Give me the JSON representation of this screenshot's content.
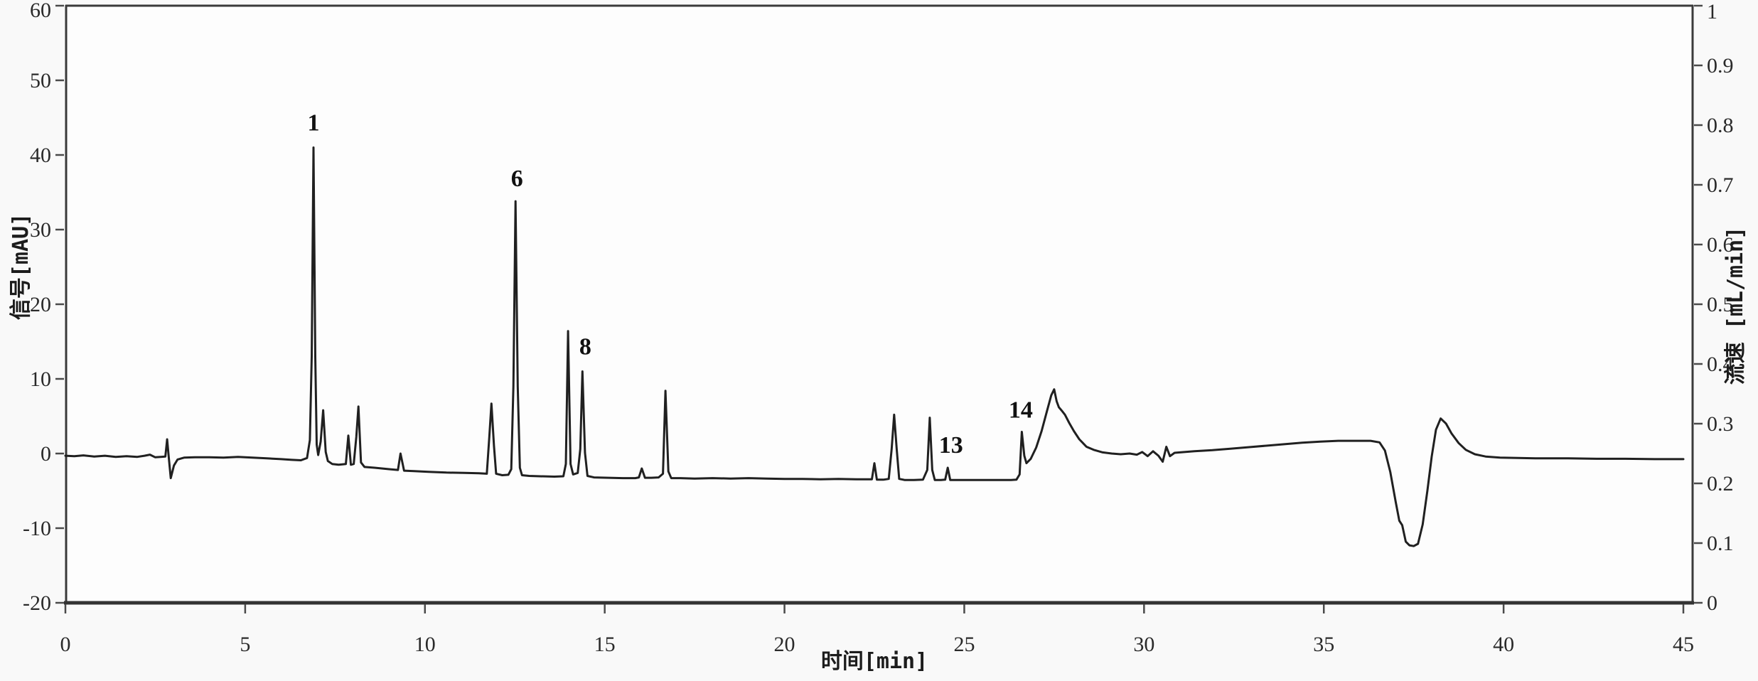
{
  "figure": {
    "kind": "HPLC chromatogram",
    "background": "#f9f9f9",
    "plot_background": "#fdfdfd"
  },
  "chart_data": {
    "type": "line",
    "title": "",
    "xlabel": "时间[min]",
    "ylabel_left": "信号[mAU]",
    "ylabel_right": "流速 [mL/min]",
    "legend": "none",
    "grid": "off",
    "x_axis": {
      "min": 0,
      "max": 45.3,
      "ticks": [
        0,
        5,
        10,
        15,
        20,
        25,
        30,
        35,
        40,
        45
      ]
    },
    "y_axis_left": {
      "min": -20,
      "max": 60,
      "ticks": [
        -20,
        -10,
        0,
        10,
        20,
        30,
        40,
        50,
        60
      ]
    },
    "y_axis_right": {
      "min": 0,
      "max": 1,
      "ticks": [
        0,
        0.1,
        0.2,
        0.3,
        0.4,
        0.5,
        0.6,
        0.7,
        0.8,
        0.9,
        1
      ]
    },
    "peak_labels": [
      {
        "text": "1",
        "t": 6.9,
        "v": 43.3
      },
      {
        "text": "6",
        "t": 12.56,
        "v": 35.8
      },
      {
        "text": "8",
        "t": 14.46,
        "v": 13.3
      },
      {
        "text": "13",
        "t": 24.63,
        "v": 0.1
      },
      {
        "text": "14",
        "t": 26.57,
        "v": 4.8
      }
    ],
    "series": [
      {
        "name": "signal",
        "color": "#202020",
        "points": [
          [
            0,
            -0.3
          ],
          [
            0.25,
            -0.35
          ],
          [
            0.5,
            -0.25
          ],
          [
            0.8,
            -0.4
          ],
          [
            1.1,
            -0.3
          ],
          [
            1.4,
            -0.45
          ],
          [
            1.7,
            -0.35
          ],
          [
            2.0,
            -0.45
          ],
          [
            2.2,
            -0.3
          ],
          [
            2.35,
            -0.15
          ],
          [
            2.5,
            -0.5
          ],
          [
            2.65,
            -0.45
          ],
          [
            2.78,
            -0.4
          ],
          [
            2.83,
            1.9
          ],
          [
            2.87,
            -0.3
          ],
          [
            2.93,
            -3.3
          ],
          [
            3.02,
            -1.6
          ],
          [
            3.12,
            -0.8
          ],
          [
            3.3,
            -0.55
          ],
          [
            3.6,
            -0.5
          ],
          [
            4.0,
            -0.5
          ],
          [
            4.4,
            -0.55
          ],
          [
            4.8,
            -0.45
          ],
          [
            5.2,
            -0.55
          ],
          [
            5.6,
            -0.65
          ],
          [
            6.0,
            -0.75
          ],
          [
            6.3,
            -0.85
          ],
          [
            6.55,
            -0.9
          ],
          [
            6.72,
            -0.6
          ],
          [
            6.8,
            1.8
          ],
          [
            6.85,
            13
          ],
          [
            6.9,
            41.0
          ],
          [
            6.95,
            13
          ],
          [
            6.99,
            1.2
          ],
          [
            7.03,
            -0.2
          ],
          [
            7.1,
            1.6
          ],
          [
            7.17,
            5.8
          ],
          [
            7.24,
            0.2
          ],
          [
            7.3,
            -1.0
          ],
          [
            7.42,
            -1.4
          ],
          [
            7.6,
            -1.5
          ],
          [
            7.8,
            -1.4
          ],
          [
            7.87,
            2.4
          ],
          [
            7.94,
            -1.5
          ],
          [
            8.02,
            -1.4
          ],
          [
            8.09,
            2.2
          ],
          [
            8.15,
            6.3
          ],
          [
            8.22,
            -1.2
          ],
          [
            8.32,
            -1.8
          ],
          [
            8.6,
            -1.9
          ],
          [
            9.0,
            -2.1
          ],
          [
            9.25,
            -2.2
          ],
          [
            9.32,
            0.0
          ],
          [
            9.42,
            -2.3
          ],
          [
            9.7,
            -2.35
          ],
          [
            10.1,
            -2.45
          ],
          [
            10.6,
            -2.55
          ],
          [
            11.1,
            -2.6
          ],
          [
            11.5,
            -2.65
          ],
          [
            11.72,
            -2.7
          ],
          [
            11.79,
            2.2
          ],
          [
            11.85,
            6.7
          ],
          [
            11.92,
            1.0
          ],
          [
            11.98,
            -2.7
          ],
          [
            12.15,
            -2.9
          ],
          [
            12.32,
            -2.85
          ],
          [
            12.4,
            -2.1
          ],
          [
            12.46,
            9
          ],
          [
            12.52,
            33.8
          ],
          [
            12.58,
            9
          ],
          [
            12.64,
            -1.9
          ],
          [
            12.7,
            -2.9
          ],
          [
            12.9,
            -3.0
          ],
          [
            13.2,
            -3.05
          ],
          [
            13.6,
            -3.1
          ],
          [
            13.85,
            -3.05
          ],
          [
            13.92,
            -1.4
          ],
          [
            13.98,
            16.4
          ],
          [
            14.05,
            -1.4
          ],
          [
            14.12,
            -2.8
          ],
          [
            14.25,
            -2.6
          ],
          [
            14.32,
            0.6
          ],
          [
            14.38,
            11.0
          ],
          [
            14.45,
            0.1
          ],
          [
            14.52,
            -3.0
          ],
          [
            14.7,
            -3.2
          ],
          [
            15.1,
            -3.25
          ],
          [
            15.5,
            -3.3
          ],
          [
            15.85,
            -3.3
          ],
          [
            15.95,
            -3.2
          ],
          [
            16.03,
            -2.0
          ],
          [
            16.12,
            -3.25
          ],
          [
            16.3,
            -3.25
          ],
          [
            16.5,
            -3.2
          ],
          [
            16.62,
            -2.7
          ],
          [
            16.69,
            8.4
          ],
          [
            16.77,
            -2.4
          ],
          [
            16.85,
            -3.3
          ],
          [
            17.1,
            -3.3
          ],
          [
            17.5,
            -3.35
          ],
          [
            18.0,
            -3.3
          ],
          [
            18.5,
            -3.35
          ],
          [
            19.0,
            -3.3
          ],
          [
            19.5,
            -3.35
          ],
          [
            20.0,
            -3.4
          ],
          [
            20.5,
            -3.4
          ],
          [
            21.0,
            -3.45
          ],
          [
            21.5,
            -3.4
          ],
          [
            22.0,
            -3.45
          ],
          [
            22.25,
            -3.45
          ],
          [
            22.43,
            -3.45
          ],
          [
            22.5,
            -1.3
          ],
          [
            22.57,
            -3.5
          ],
          [
            22.75,
            -3.5
          ],
          [
            22.9,
            -3.4
          ],
          [
            22.98,
            0.6
          ],
          [
            23.05,
            5.2
          ],
          [
            23.12,
            0.6
          ],
          [
            23.19,
            -3.4
          ],
          [
            23.35,
            -3.55
          ],
          [
            23.6,
            -3.55
          ],
          [
            23.85,
            -3.5
          ],
          [
            23.97,
            -2.2
          ],
          [
            24.04,
            4.8
          ],
          [
            24.11,
            -2.2
          ],
          [
            24.18,
            -3.55
          ],
          [
            24.35,
            -3.55
          ],
          [
            24.47,
            -3.5
          ],
          [
            24.54,
            -1.9
          ],
          [
            24.61,
            -3.55
          ],
          [
            24.85,
            -3.55
          ],
          [
            25.2,
            -3.55
          ],
          [
            25.6,
            -3.55
          ],
          [
            26.0,
            -3.55
          ],
          [
            26.3,
            -3.55
          ],
          [
            26.45,
            -3.5
          ],
          [
            26.54,
            -2.8
          ],
          [
            26.6,
            2.9
          ],
          [
            26.67,
            -0.3
          ],
          [
            26.73,
            -1.3
          ],
          [
            26.85,
            -0.7
          ],
          [
            27.0,
            0.8
          ],
          [
            27.15,
            3.0
          ],
          [
            27.3,
            5.7
          ],
          [
            27.42,
            7.8
          ],
          [
            27.5,
            8.6
          ],
          [
            27.57,
            7.0
          ],
          [
            27.63,
            6.2
          ],
          [
            27.72,
            5.7
          ],
          [
            27.8,
            5.2
          ],
          [
            27.92,
            4.1
          ],
          [
            28.05,
            3.0
          ],
          [
            28.2,
            1.9
          ],
          [
            28.4,
            0.9
          ],
          [
            28.6,
            0.5
          ],
          [
            28.85,
            0.15
          ],
          [
            29.1,
            0.0
          ],
          [
            29.35,
            -0.1
          ],
          [
            29.6,
            0.0
          ],
          [
            29.8,
            -0.15
          ],
          [
            29.95,
            0.2
          ],
          [
            30.1,
            -0.35
          ],
          [
            30.25,
            0.3
          ],
          [
            30.4,
            -0.3
          ],
          [
            30.52,
            -1.1
          ],
          [
            30.62,
            0.9
          ],
          [
            30.72,
            -0.35
          ],
          [
            30.85,
            0.1
          ],
          [
            31.0,
            0.15
          ],
          [
            31.4,
            0.3
          ],
          [
            31.9,
            0.45
          ],
          [
            32.4,
            0.65
          ],
          [
            32.9,
            0.85
          ],
          [
            33.4,
            1.05
          ],
          [
            33.9,
            1.25
          ],
          [
            34.4,
            1.45
          ],
          [
            34.9,
            1.6
          ],
          [
            35.4,
            1.7
          ],
          [
            35.9,
            1.7
          ],
          [
            36.3,
            1.7
          ],
          [
            36.55,
            1.5
          ],
          [
            36.7,
            0.4
          ],
          [
            36.85,
            -2.5
          ],
          [
            37.0,
            -6.5
          ],
          [
            37.1,
            -9.0
          ],
          [
            37.18,
            -9.6
          ],
          [
            37.28,
            -11.8
          ],
          [
            37.38,
            -12.3
          ],
          [
            37.5,
            -12.4
          ],
          [
            37.62,
            -12.1
          ],
          [
            37.75,
            -9.5
          ],
          [
            37.88,
            -5.0
          ],
          [
            38.0,
            -0.4
          ],
          [
            38.12,
            3.2
          ],
          [
            38.25,
            4.7
          ],
          [
            38.4,
            4.0
          ],
          [
            38.55,
            2.7
          ],
          [
            38.75,
            1.4
          ],
          [
            38.95,
            0.5
          ],
          [
            39.2,
            -0.1
          ],
          [
            39.5,
            -0.4
          ],
          [
            39.9,
            -0.55
          ],
          [
            40.4,
            -0.6
          ],
          [
            41.0,
            -0.65
          ],
          [
            41.8,
            -0.65
          ],
          [
            42.6,
            -0.7
          ],
          [
            43.4,
            -0.7
          ],
          [
            44.2,
            -0.75
          ],
          [
            45,
            -0.75
          ]
        ]
      }
    ],
    "colors": {
      "trace": "#202020",
      "axis": "#3a3a3a",
      "tick": "#4a4a4a",
      "tick_label": "#2a2a2a",
      "peak_label": "#111111"
    }
  }
}
